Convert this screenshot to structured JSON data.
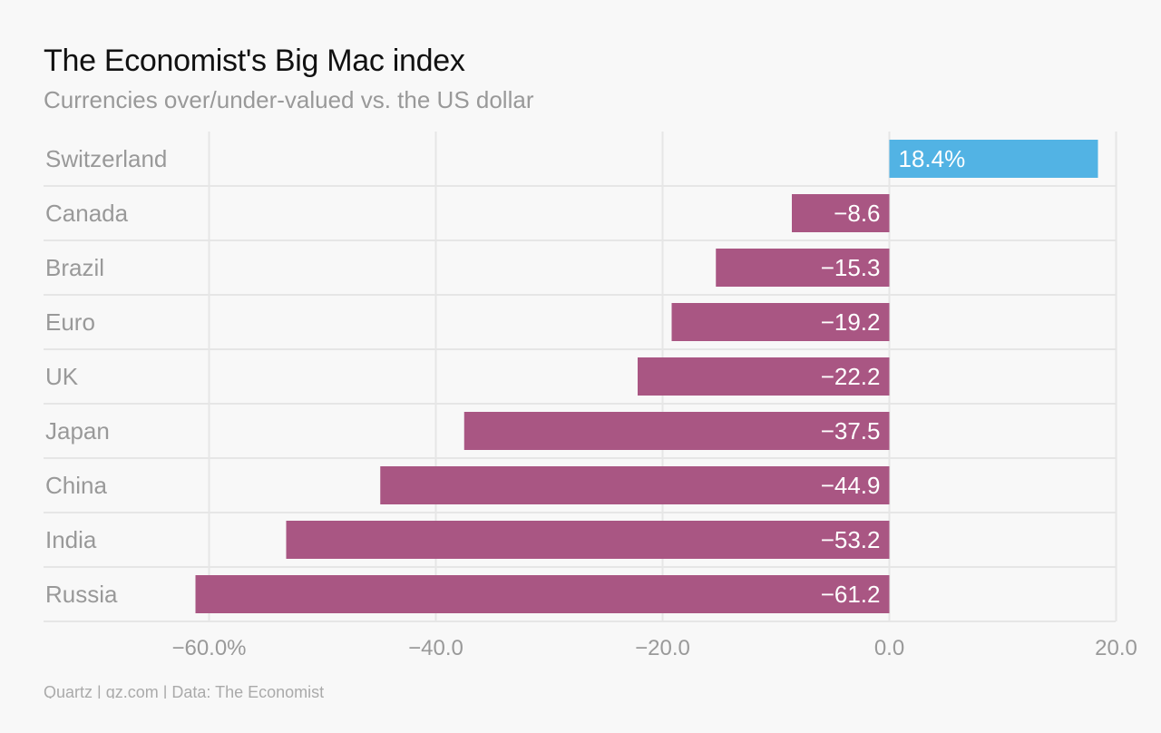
{
  "title": "The Economist's Big Mac index",
  "subtitle": "Currencies over/under-valued vs. the US dollar",
  "footer": "Quartz | qz.com | Data: The Economist",
  "colors": {
    "positive": "#52b3e4",
    "negative": "#a95683",
    "grid": "#e6e6e6",
    "background": "#f8f8f8"
  },
  "chart_data": {
    "type": "bar",
    "orientation": "horizontal",
    "title": "The Economist's Big Mac index",
    "subtitle": "Currencies over/under-valued vs. the US dollar",
    "categories": [
      "Switzerland",
      "Canada",
      "Brazil",
      "Euro",
      "UK",
      "Japan",
      "China",
      "India",
      "Russia"
    ],
    "values": [
      18.4,
      -8.6,
      -15.3,
      -19.2,
      -22.2,
      -37.5,
      -44.9,
      -53.2,
      -61.2
    ],
    "value_labels": [
      "18.4%",
      "−8.6",
      "−15.3",
      "−19.2",
      "−22.2",
      "−37.5",
      "−44.9",
      "−53.2",
      "−61.2"
    ],
    "xlim": [
      -73,
      20
    ],
    "xticks": [
      -60,
      -40,
      -20,
      0,
      20
    ],
    "xtick_labels": [
      "−60.0%",
      "−40.0",
      "−20.0",
      "0.0",
      "20.0"
    ],
    "grid": true,
    "legend": "none"
  }
}
